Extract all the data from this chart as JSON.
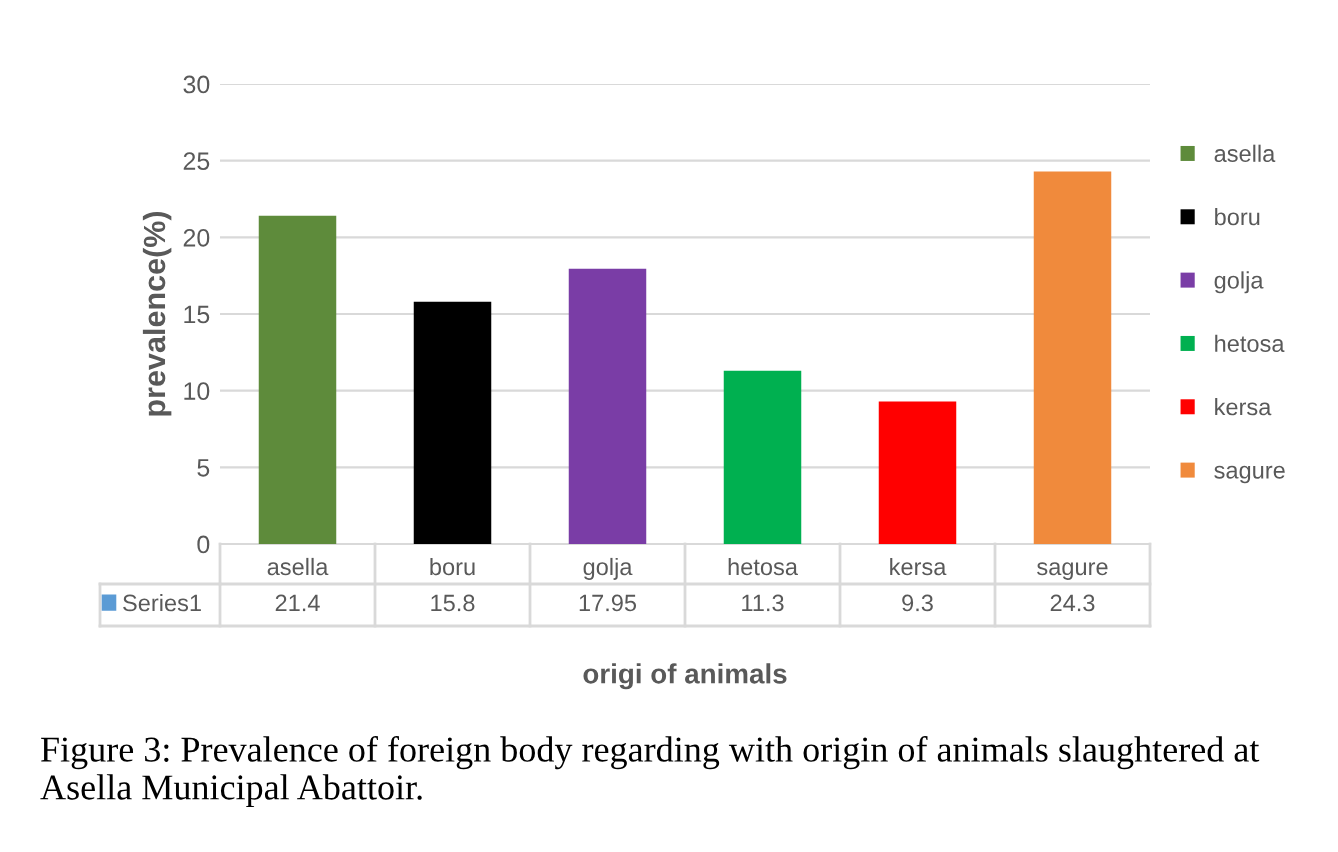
{
  "chart_data": {
    "type": "bar",
    "categories": [
      "asella",
      "boru",
      "golja",
      "hetosa",
      "kersa",
      "sagure"
    ],
    "series": [
      {
        "name": "Series1",
        "color": "#5b9bd5",
        "colors": [
          "#5e8b3b",
          "#000000",
          "#7a3da6",
          "#00b050",
          "#ff0000",
          "#f08a3c"
        ],
        "values": [
          21.4,
          15.8,
          17.95,
          11.3,
          9.3,
          24.3
        ]
      }
    ],
    "ylabel": "prevalence(%)",
    "xlabel": "origi of animals",
    "ylim": [
      0,
      30
    ],
    "yticks": [
      0,
      5,
      10,
      15,
      20,
      25,
      30
    ],
    "grid": "y",
    "legend": "bottom left",
    "data_labels": true,
    "annotations": [
      "Figure 3: Prevalence of foreign body regarding with origin of animals slaughtered at Asella Municipal Abattoir."
    ]
  }
}
